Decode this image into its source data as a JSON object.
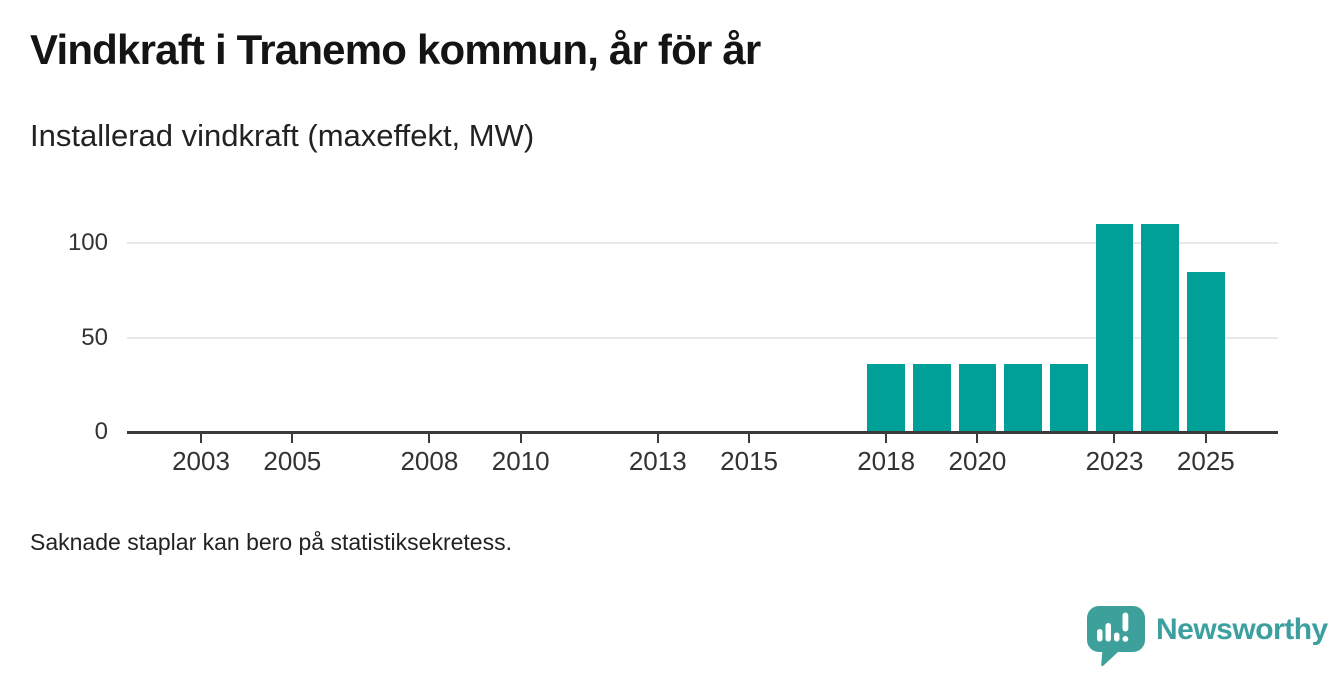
{
  "header": {
    "title": "Vindkraft i Tranemo kommun, år för år",
    "subtitle": "Installerad vindkraft (maxeffekt, MW)"
  },
  "chart_data": {
    "type": "bar",
    "title": "Vindkraft i Tranemo kommun, år för år",
    "subtitle": "Installerad vindkraft (maxeffekt, MW)",
    "unit": "MW",
    "x": [
      2018,
      2019,
      2020,
      2021,
      2022,
      2023,
      2024,
      2025
    ],
    "values": [
      36,
      36,
      36,
      36,
      36,
      110,
      110,
      85
    ],
    "x_ticks": [
      2003,
      2005,
      2008,
      2010,
      2013,
      2015,
      2018,
      2020,
      2023,
      2025
    ],
    "y_ticks": [
      0,
      50,
      100
    ],
    "y_gridlines": [
      50,
      100
    ],
    "x_domain": [
      2001.38,
      2026.58
    ],
    "ylim": [
      0,
      115
    ],
    "grid": "horizontal",
    "legend": "none",
    "bar_color": "#00A099",
    "note": "bars shown only for 2018-2025; earlier years empty"
  },
  "footer": {
    "note": "Saknade staplar kan bero på statistiksekretess."
  },
  "branding": {
    "name": "Newsworthy",
    "logo_color": "#3EA09B",
    "wordmark_color": "#3C9FA0"
  }
}
